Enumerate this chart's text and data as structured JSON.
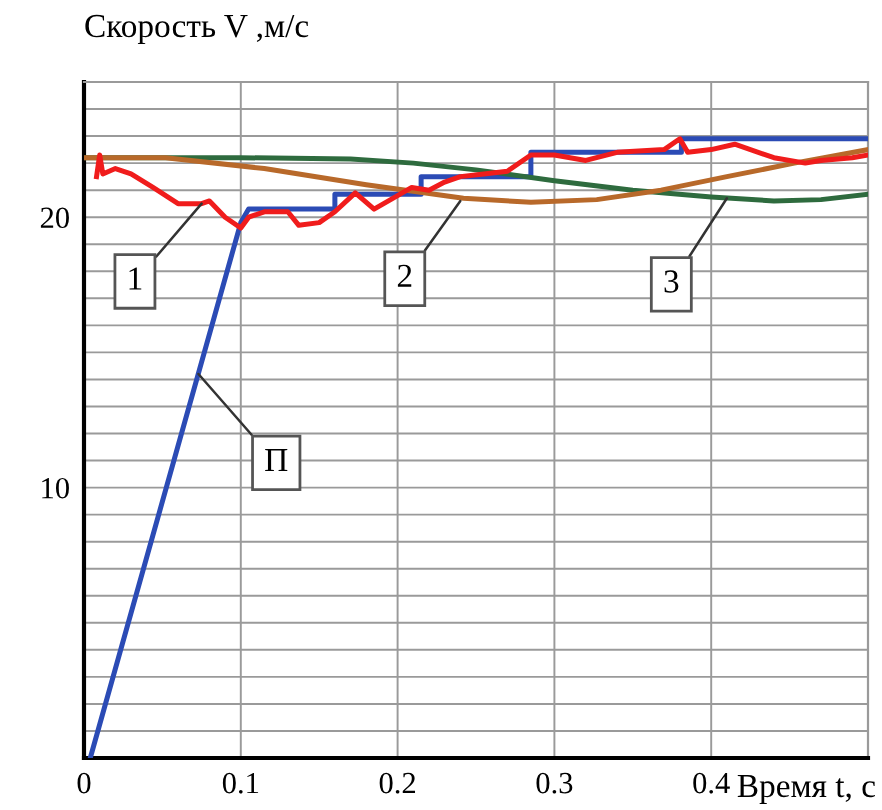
{
  "chart_data": {
    "type": "line",
    "xlabel": "Время t, с",
    "ylabel": "Скорость V ,м/с",
    "xlim": [
      0,
      0.5
    ],
    "ylim": [
      0,
      25
    ],
    "xticks": [
      0,
      0.1,
      0.2,
      0.3,
      0.4,
      {
        "value": 0.5,
        "label": null
      }
    ],
    "yticks": [
      {
        "value": 0,
        "label": null
      },
      {
        "value": 1,
        "label": null
      },
      {
        "value": 2,
        "label": null
      },
      {
        "value": 3,
        "label": null
      },
      {
        "value": 4,
        "label": null
      },
      {
        "value": 5,
        "label": null
      },
      {
        "value": 6,
        "label": null
      },
      {
        "value": 7,
        "label": null
      },
      {
        "value": 8,
        "label": null
      },
      {
        "value": 9,
        "label": null
      },
      10,
      {
        "value": 11,
        "label": null
      },
      {
        "value": 12,
        "label": null
      },
      {
        "value": 13,
        "label": null
      },
      {
        "value": 14,
        "label": null
      },
      {
        "value": 15,
        "label": null
      },
      {
        "value": 16,
        "label": null
      },
      {
        "value": 17,
        "label": null
      },
      {
        "value": 18,
        "label": null
      },
      {
        "value": 19,
        "label": null
      },
      20,
      {
        "value": 21,
        "label": null
      },
      {
        "value": 22,
        "label": null
      },
      {
        "value": 23,
        "label": null
      },
      {
        "value": 24,
        "label": null
      },
      {
        "value": 25,
        "label": null
      }
    ],
    "grid": true,
    "marker": "none",
    "line_style": "solid",
    "legend": false,
    "series": [
      {
        "color": "#2b4bb5",
        "x": [
          0.004,
          0.1,
          0.105,
          0.16,
          0.16,
          0.215,
          0.215,
          0.285,
          0.285,
          0.381,
          0.381,
          0.5
        ],
        "values": [
          0,
          19.8,
          20.3,
          20.3,
          20.85,
          20.85,
          21.5,
          21.5,
          22.4,
          22.4,
          22.9,
          22.9
        ]
      },
      {
        "color": "#2e6b3e",
        "x": [
          0,
          0.1,
          0.17,
          0.21,
          0.25,
          0.3,
          0.35,
          0.4,
          0.44,
          0.47,
          0.5
        ],
        "values": [
          22.2,
          22.2,
          22.15,
          22.0,
          21.75,
          21.35,
          21.0,
          20.75,
          20.6,
          20.65,
          20.85
        ]
      },
      {
        "color": "#b8692a",
        "x": [
          0,
          0.052,
          0.115,
          0.18,
          0.242,
          0.285,
          0.327,
          0.368,
          0.41,
          0.453,
          0.5
        ],
        "values": [
          22.2,
          22.2,
          21.8,
          21.2,
          20.7,
          20.55,
          20.65,
          21.0,
          21.5,
          22.0,
          22.5
        ]
      },
      {
        "color": "#f01c1c",
        "x": [
          0.008,
          0.01,
          0.012,
          0.02,
          0.03,
          0.044,
          0.06,
          0.075,
          0.08,
          0.09,
          0.1,
          0.105,
          0.115,
          0.13,
          0.137,
          0.15,
          0.16,
          0.173,
          0.185,
          0.2,
          0.209,
          0.22,
          0.23,
          0.24,
          0.255,
          0.27,
          0.285,
          0.3,
          0.32,
          0.34,
          0.37,
          0.38,
          0.385,
          0.4,
          0.415,
          0.44,
          0.46,
          0.47,
          0.49,
          0.5
        ],
        "values": [
          21.5,
          22.3,
          21.6,
          21.8,
          21.6,
          21.1,
          20.5,
          20.5,
          20.6,
          20.0,
          19.6,
          20.0,
          20.2,
          20.2,
          19.7,
          19.8,
          20.2,
          20.9,
          20.3,
          20.8,
          21.1,
          21.0,
          21.3,
          21.5,
          21.6,
          21.7,
          22.3,
          22.3,
          22.1,
          22.4,
          22.5,
          22.9,
          22.4,
          22.5,
          22.7,
          22.2,
          22.0,
          22.1,
          22.2,
          22.3
        ]
      }
    ],
    "annotations": [
      {
        "text": "1",
        "x": 0.075,
        "y": 20.5
      },
      {
        "text": "2",
        "x": 0.24,
        "y": 20.6
      },
      {
        "text": "3",
        "x": 0.41,
        "y": 20.7
      },
      {
        "text": "П",
        "x": 0.073,
        "y": 14.2
      }
    ]
  }
}
